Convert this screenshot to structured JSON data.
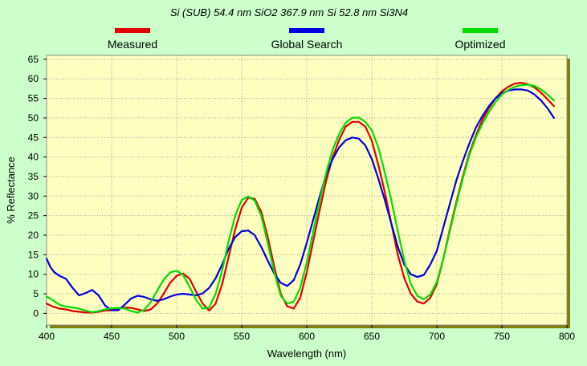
{
  "chart_data": {
    "type": "line",
    "title": "Si (SUB)  54.4 nm SiO2  367.9 nm Si  52.8 nm Si3N4",
    "xlabel": "Wavelength (nm)",
    "ylabel": "% Reflectance",
    "xlim": [
      400,
      800
    ],
    "ylim": [
      -3,
      66
    ],
    "xticks": [
      400,
      450,
      500,
      550,
      600,
      650,
      700,
      750,
      800
    ],
    "yticks": [
      0,
      5,
      10,
      15,
      20,
      25,
      30,
      35,
      40,
      45,
      50,
      55,
      60,
      65
    ],
    "grid": true,
    "legend_position": "top",
    "plot_background": "#ffffc0",
    "page_background": "#ccffcc",
    "frame_shadow_color": "#808000",
    "series": [
      {
        "name": "Measured",
        "color": "#e00000",
        "points": [
          [
            400,
            2.5
          ],
          [
            405,
            1.7
          ],
          [
            410,
            1.2
          ],
          [
            415,
            1.0
          ],
          [
            420,
            0.6
          ],
          [
            425,
            0.4
          ],
          [
            430,
            0.2
          ],
          [
            435,
            0.2
          ],
          [
            440,
            0.4
          ],
          [
            445,
            0.7
          ],
          [
            450,
            0.8
          ],
          [
            455,
            1.3
          ],
          [
            460,
            1.5
          ],
          [
            465,
            1.4
          ],
          [
            470,
            1.0
          ],
          [
            475,
            0.6
          ],
          [
            480,
            1.0
          ],
          [
            485,
            2.5
          ],
          [
            490,
            5.0
          ],
          [
            495,
            7.8
          ],
          [
            500,
            9.6
          ],
          [
            505,
            10.2
          ],
          [
            510,
            8.8
          ],
          [
            515,
            5.5
          ],
          [
            520,
            2.5
          ],
          [
            525,
            0.7
          ],
          [
            530,
            2.5
          ],
          [
            535,
            7.5
          ],
          [
            540,
            14.5
          ],
          [
            545,
            21.5
          ],
          [
            550,
            27.0
          ],
          [
            555,
            29.6
          ],
          [
            560,
            29.3
          ],
          [
            565,
            26.0
          ],
          [
            570,
            19.5
          ],
          [
            575,
            12.0
          ],
          [
            580,
            5.0
          ],
          [
            585,
            1.8
          ],
          [
            590,
            1.2
          ],
          [
            595,
            4.0
          ],
          [
            600,
            10.5
          ],
          [
            605,
            18.5
          ],
          [
            610,
            26.5
          ],
          [
            615,
            34.0
          ],
          [
            620,
            40.0
          ],
          [
            625,
            44.5
          ],
          [
            630,
            47.8
          ],
          [
            635,
            49.0
          ],
          [
            640,
            49.0
          ],
          [
            645,
            47.8
          ],
          [
            650,
            44.2
          ],
          [
            655,
            38.0
          ],
          [
            660,
            31.0
          ],
          [
            665,
            23.0
          ],
          [
            670,
            15.0
          ],
          [
            675,
            9.0
          ],
          [
            680,
            5.0
          ],
          [
            685,
            3.0
          ],
          [
            690,
            2.5
          ],
          [
            695,
            4.0
          ],
          [
            700,
            7.5
          ],
          [
            705,
            14.0
          ],
          [
            710,
            21.5
          ],
          [
            715,
            28.5
          ],
          [
            720,
            35.0
          ],
          [
            725,
            41.0
          ],
          [
            730,
            45.5
          ],
          [
            735,
            49.5
          ],
          [
            740,
            52.5
          ],
          [
            745,
            55.0
          ],
          [
            750,
            56.8
          ],
          [
            755,
            58.0
          ],
          [
            760,
            58.8
          ],
          [
            765,
            59.0
          ],
          [
            770,
            58.6
          ],
          [
            775,
            57.8
          ],
          [
            780,
            56.5
          ],
          [
            785,
            54.8
          ],
          [
            790,
            53.0
          ]
        ]
      },
      {
        "name": "Global Search",
        "color": "#0000e0",
        "points": [
          [
            400,
            14.0
          ],
          [
            403,
            11.8
          ],
          [
            406,
            10.5
          ],
          [
            410,
            9.6
          ],
          [
            415,
            8.8
          ],
          [
            420,
            6.5
          ],
          [
            425,
            4.6
          ],
          [
            430,
            5.2
          ],
          [
            435,
            6.0
          ],
          [
            440,
            4.6
          ],
          [
            445,
            2.0
          ],
          [
            450,
            0.8
          ],
          [
            455,
            0.8
          ],
          [
            460,
            2.2
          ],
          [
            465,
            3.8
          ],
          [
            470,
            4.5
          ],
          [
            475,
            4.2
          ],
          [
            480,
            3.6
          ],
          [
            485,
            3.2
          ],
          [
            490,
            3.6
          ],
          [
            495,
            4.3
          ],
          [
            500,
            4.8
          ],
          [
            505,
            5.0
          ],
          [
            510,
            4.8
          ],
          [
            515,
            4.6
          ],
          [
            520,
            5.1
          ],
          [
            525,
            6.5
          ],
          [
            530,
            9.0
          ],
          [
            535,
            12.5
          ],
          [
            540,
            16.5
          ],
          [
            545,
            19.5
          ],
          [
            550,
            21.0
          ],
          [
            555,
            21.2
          ],
          [
            560,
            20.0
          ],
          [
            565,
            17.0
          ],
          [
            570,
            13.5
          ],
          [
            575,
            10.2
          ],
          [
            580,
            7.8
          ],
          [
            585,
            7.0
          ],
          [
            590,
            8.5
          ],
          [
            595,
            12.5
          ],
          [
            600,
            18.0
          ],
          [
            605,
            24.0
          ],
          [
            610,
            30.0
          ],
          [
            615,
            35.5
          ],
          [
            620,
            39.5
          ],
          [
            625,
            42.5
          ],
          [
            630,
            44.3
          ],
          [
            635,
            45.0
          ],
          [
            640,
            44.7
          ],
          [
            645,
            43.0
          ],
          [
            650,
            39.5
          ],
          [
            655,
            34.5
          ],
          [
            660,
            29.0
          ],
          [
            665,
            23.0
          ],
          [
            670,
            17.0
          ],
          [
            675,
            12.5
          ],
          [
            680,
            10.0
          ],
          [
            685,
            9.3
          ],
          [
            690,
            9.8
          ],
          [
            695,
            12.5
          ],
          [
            700,
            16.0
          ],
          [
            705,
            22.0
          ],
          [
            710,
            28.0
          ],
          [
            715,
            34.0
          ],
          [
            720,
            39.0
          ],
          [
            725,
            43.5
          ],
          [
            730,
            47.5
          ],
          [
            735,
            50.5
          ],
          [
            740,
            53.0
          ],
          [
            745,
            55.0
          ],
          [
            750,
            56.3
          ],
          [
            755,
            57.0
          ],
          [
            760,
            57.3
          ],
          [
            765,
            57.3
          ],
          [
            770,
            57.0
          ],
          [
            775,
            56.0
          ],
          [
            780,
            54.5
          ],
          [
            785,
            52.5
          ],
          [
            790,
            50.0
          ]
        ]
      },
      {
        "name": "Optimized",
        "color": "#00dd00",
        "points": [
          [
            400,
            4.3
          ],
          [
            405,
            3.3
          ],
          [
            410,
            2.2
          ],
          [
            415,
            1.7
          ],
          [
            420,
            1.5
          ],
          [
            425,
            1.2
          ],
          [
            430,
            0.7
          ],
          [
            435,
            0.3
          ],
          [
            440,
            0.6
          ],
          [
            445,
            1.0
          ],
          [
            450,
            1.3
          ],
          [
            455,
            1.4
          ],
          [
            460,
            1.2
          ],
          [
            465,
            0.6
          ],
          [
            470,
            0.2
          ],
          [
            475,
            0.9
          ],
          [
            480,
            2.8
          ],
          [
            485,
            5.8
          ],
          [
            490,
            8.6
          ],
          [
            495,
            10.5
          ],
          [
            500,
            10.9
          ],
          [
            505,
            9.8
          ],
          [
            510,
            6.8
          ],
          [
            515,
            3.4
          ],
          [
            520,
            1.2
          ],
          [
            525,
            1.5
          ],
          [
            530,
            5.0
          ],
          [
            535,
            11.0
          ],
          [
            540,
            18.5
          ],
          [
            545,
            25.0
          ],
          [
            550,
            29.0
          ],
          [
            555,
            29.9
          ],
          [
            560,
            28.8
          ],
          [
            565,
            25.0
          ],
          [
            570,
            18.0
          ],
          [
            575,
            10.5
          ],
          [
            580,
            4.5
          ],
          [
            585,
            2.5
          ],
          [
            590,
            3.0
          ],
          [
            595,
            6.5
          ],
          [
            600,
            13.0
          ],
          [
            605,
            21.0
          ],
          [
            610,
            29.0
          ],
          [
            615,
            36.0
          ],
          [
            620,
            42.0
          ],
          [
            625,
            46.0
          ],
          [
            630,
            48.8
          ],
          [
            635,
            50.0
          ],
          [
            640,
            50.1
          ],
          [
            645,
            49.0
          ],
          [
            650,
            46.8
          ],
          [
            655,
            42.5
          ],
          [
            660,
            36.0
          ],
          [
            665,
            29.0
          ],
          [
            670,
            21.0
          ],
          [
            675,
            13.5
          ],
          [
            680,
            7.5
          ],
          [
            685,
            4.5
          ],
          [
            690,
            3.6
          ],
          [
            695,
            4.8
          ],
          [
            700,
            8.0
          ],
          [
            705,
            14.0
          ],
          [
            710,
            21.0
          ],
          [
            715,
            28.0
          ],
          [
            720,
            34.5
          ],
          [
            725,
            40.5
          ],
          [
            730,
            45.0
          ],
          [
            735,
            48.5
          ],
          [
            740,
            51.5
          ],
          [
            745,
            54.0
          ],
          [
            750,
            56.0
          ],
          [
            755,
            57.2
          ],
          [
            760,
            58.0
          ],
          [
            765,
            58.4
          ],
          [
            770,
            58.5
          ],
          [
            775,
            58.2
          ],
          [
            780,
            57.3
          ],
          [
            785,
            56.0
          ],
          [
            790,
            54.5
          ]
        ]
      }
    ]
  }
}
